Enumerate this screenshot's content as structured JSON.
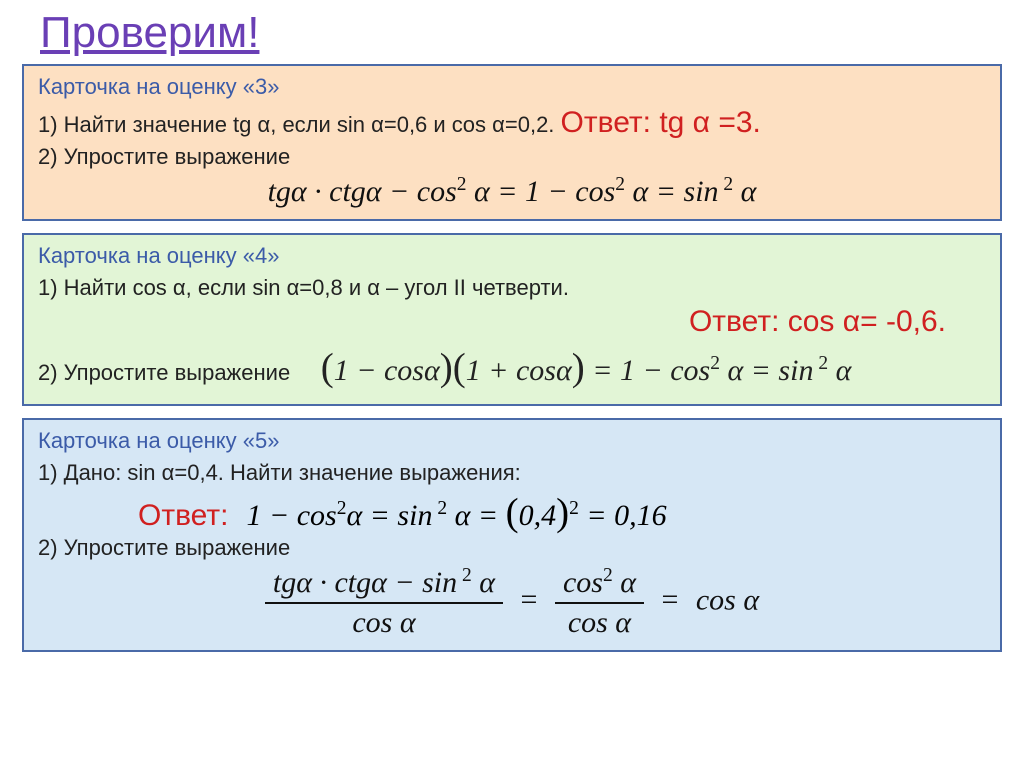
{
  "title": {
    "text": "Проверим!",
    "color": "#6a3fb5"
  },
  "card3": {
    "background": "#fde0c2",
    "border": "#4a6aa8",
    "heading": {
      "text": "Карточка на оценку «3»",
      "color": "#3b5ba8"
    },
    "line1_prefix": "1) Найти значение tg α, если sin α=0,6 и cos α=0,2. ",
    "answer1": {
      "text": "Ответ: tg α =3.",
      "color": "#d02020"
    },
    "line2": "2) Упростите выражение",
    "formula": "tgα · ctgα − cos² α = 1 − cos² α = sin² α"
  },
  "card4": {
    "background": "#e2f5d6",
    "border": "#4a6aa8",
    "heading": {
      "text": "Карточка на оценку «4»",
      "color": "#3b5ba8"
    },
    "line1": "1)  Найти cos α, если sin α=0,8 и α – угол II четверти.",
    "answer1": {
      "text": "Ответ: cos α= -0,6.",
      "color": "#d02020"
    },
    "line2": "2) Упростите выражение",
    "formula": "(1 − cosα)(1 + cosα) = 1 − cos² α = sin² α"
  },
  "card5": {
    "background": "#d6e7f5",
    "border": "#4a6aa8",
    "heading": {
      "text": "Карточка на оценку «5»",
      "color": "#3b5ba8"
    },
    "line1": "1)  Дано: sin α=0,4. Найти значение выражения:",
    "answer_label": {
      "text": "Ответ:",
      "color": "#d02020"
    },
    "formula1": "1 − cos² α = sin² α = (0,4)² = 0,16",
    "line2": "2) Упростите выражение",
    "formula2_num": "tgα · ctgα − sin² α",
    "formula2_den": "cos α",
    "formula2_mid_num": "cos² α",
    "formula2_mid_den": "cos α",
    "formula2_rhs": "cos α"
  }
}
